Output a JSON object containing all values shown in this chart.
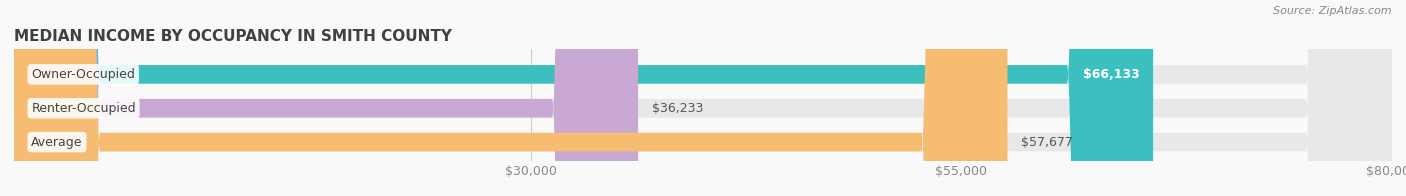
{
  "title": "MEDIAN INCOME BY OCCUPANCY IN SMITH COUNTY",
  "source": "Source: ZipAtlas.com",
  "categories": [
    "Owner-Occupied",
    "Renter-Occupied",
    "Average"
  ],
  "values": [
    66133,
    36233,
    57677
  ],
  "bar_colors": [
    "#3bbfbf",
    "#c9a8d4",
    "#f5bc72"
  ],
  "bar_bg_color": "#e8e8e8",
  "label_colors": [
    "#ffffff",
    "#555555",
    "#555555"
  ],
  "value_labels": [
    "$66,133",
    "$36,233",
    "$57,677"
  ],
  "xmin": 0,
  "xmax": 80000,
  "xticks": [
    30000,
    55000,
    80000
  ],
  "xtick_labels": [
    "$30,000",
    "$55,000",
    "$80,000"
  ],
  "title_fontsize": 11,
  "tick_fontsize": 9,
  "bar_label_fontsize": 9,
  "value_label_fontsize": 9,
  "background_color": "#f9f9f9",
  "bar_height": 0.55,
  "figsize": [
    14.06,
    1.96
  ],
  "dpi": 100
}
